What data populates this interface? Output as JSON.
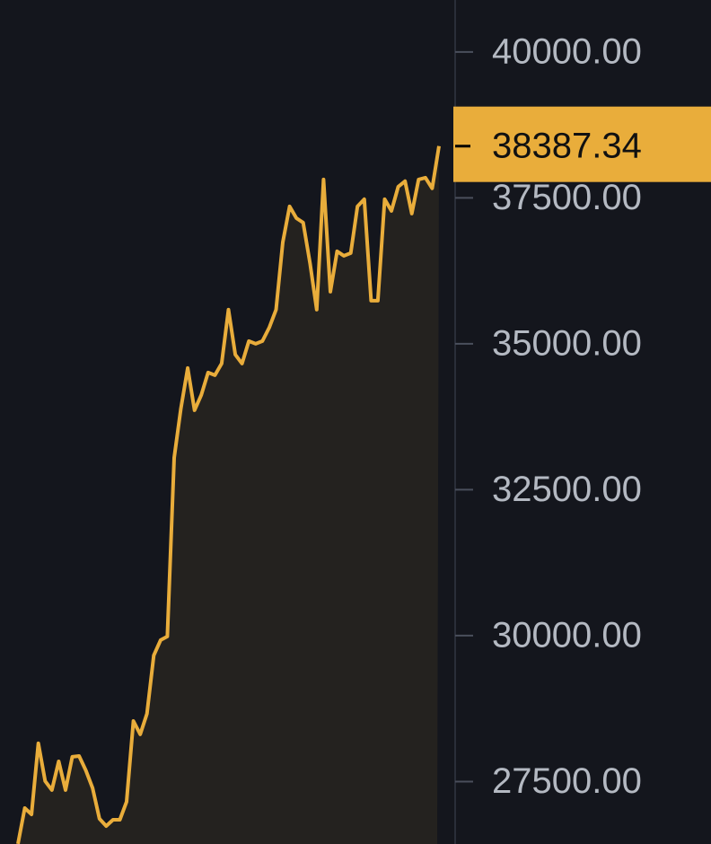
{
  "chart_data": {
    "type": "line",
    "color": "#e9ad3b",
    "values": [
      26431,
      27046,
      26938,
      28154,
      27508,
      27354,
      27846,
      27354,
      27923,
      27938,
      27692,
      27385,
      26862,
      26738,
      26846,
      26846,
      27154,
      28538,
      28308,
      28662,
      29662,
      29923,
      29985,
      33046,
      33892,
      34585,
      33862,
      34123,
      34508,
      34462,
      34662,
      35585,
      34815,
      34662,
      35046,
      35000,
      35046,
      35277,
      35585,
      36738,
      37354,
      37154,
      37077,
      36385,
      35585,
      37815,
      35892,
      36585,
      36508,
      36554,
      37354,
      37477,
      35738,
      35738,
      37477,
      37277,
      37692,
      37785,
      37231,
      37815,
      37846,
      37662,
      38387.34
    ],
    "ylim": [
      26430,
      40890
    ],
    "yticks": [
      {
        "value": 27500,
        "label": "27500.00"
      },
      {
        "value": 30000,
        "label": "30000.00"
      },
      {
        "value": 32500,
        "label": "32500.00"
      },
      {
        "value": 35000,
        "label": "35000.00"
      },
      {
        "value": 37500,
        "label": "37500.00"
      },
      {
        "value": 40000,
        "label": "40000.00"
      }
    ]
  }
}
